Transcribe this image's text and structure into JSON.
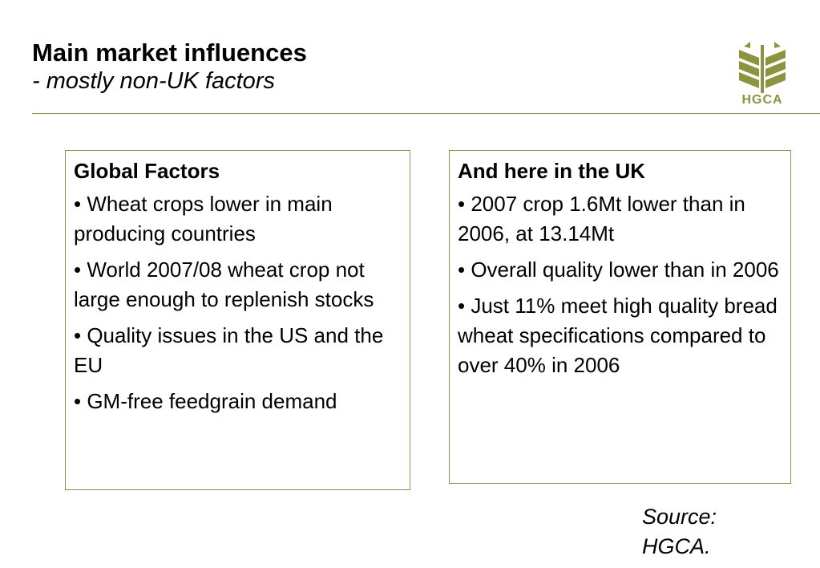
{
  "slide": {
    "title": "Main market influences",
    "subtitle": "- mostly non-UK factors"
  },
  "logo": {
    "text": "HGCA",
    "color": "#8c9440"
  },
  "global_box": {
    "heading": "Global Factors",
    "bullets": [
      "• Wheat crops lower in main producing countries",
      "• World 2007/08 wheat crop not large enough to replenish stocks",
      "• Quality issues in the US and the EU",
      "• GM-free feedgrain demand"
    ]
  },
  "uk_box": {
    "heading": "And here in the UK",
    "bullets": [
      "• 2007 crop 1.6Mt lower than in 2006, at 13.14Mt",
      "• Overall quality lower than in 2006",
      "• Just 11% meet high quality bread wheat specifications compared to over 40% in 2006"
    ]
  },
  "source": {
    "line1": "Source:",
    "line2": "HGCA."
  },
  "colors": {
    "rule": "#8a8f4a",
    "box_border": "#8a8f4a"
  }
}
